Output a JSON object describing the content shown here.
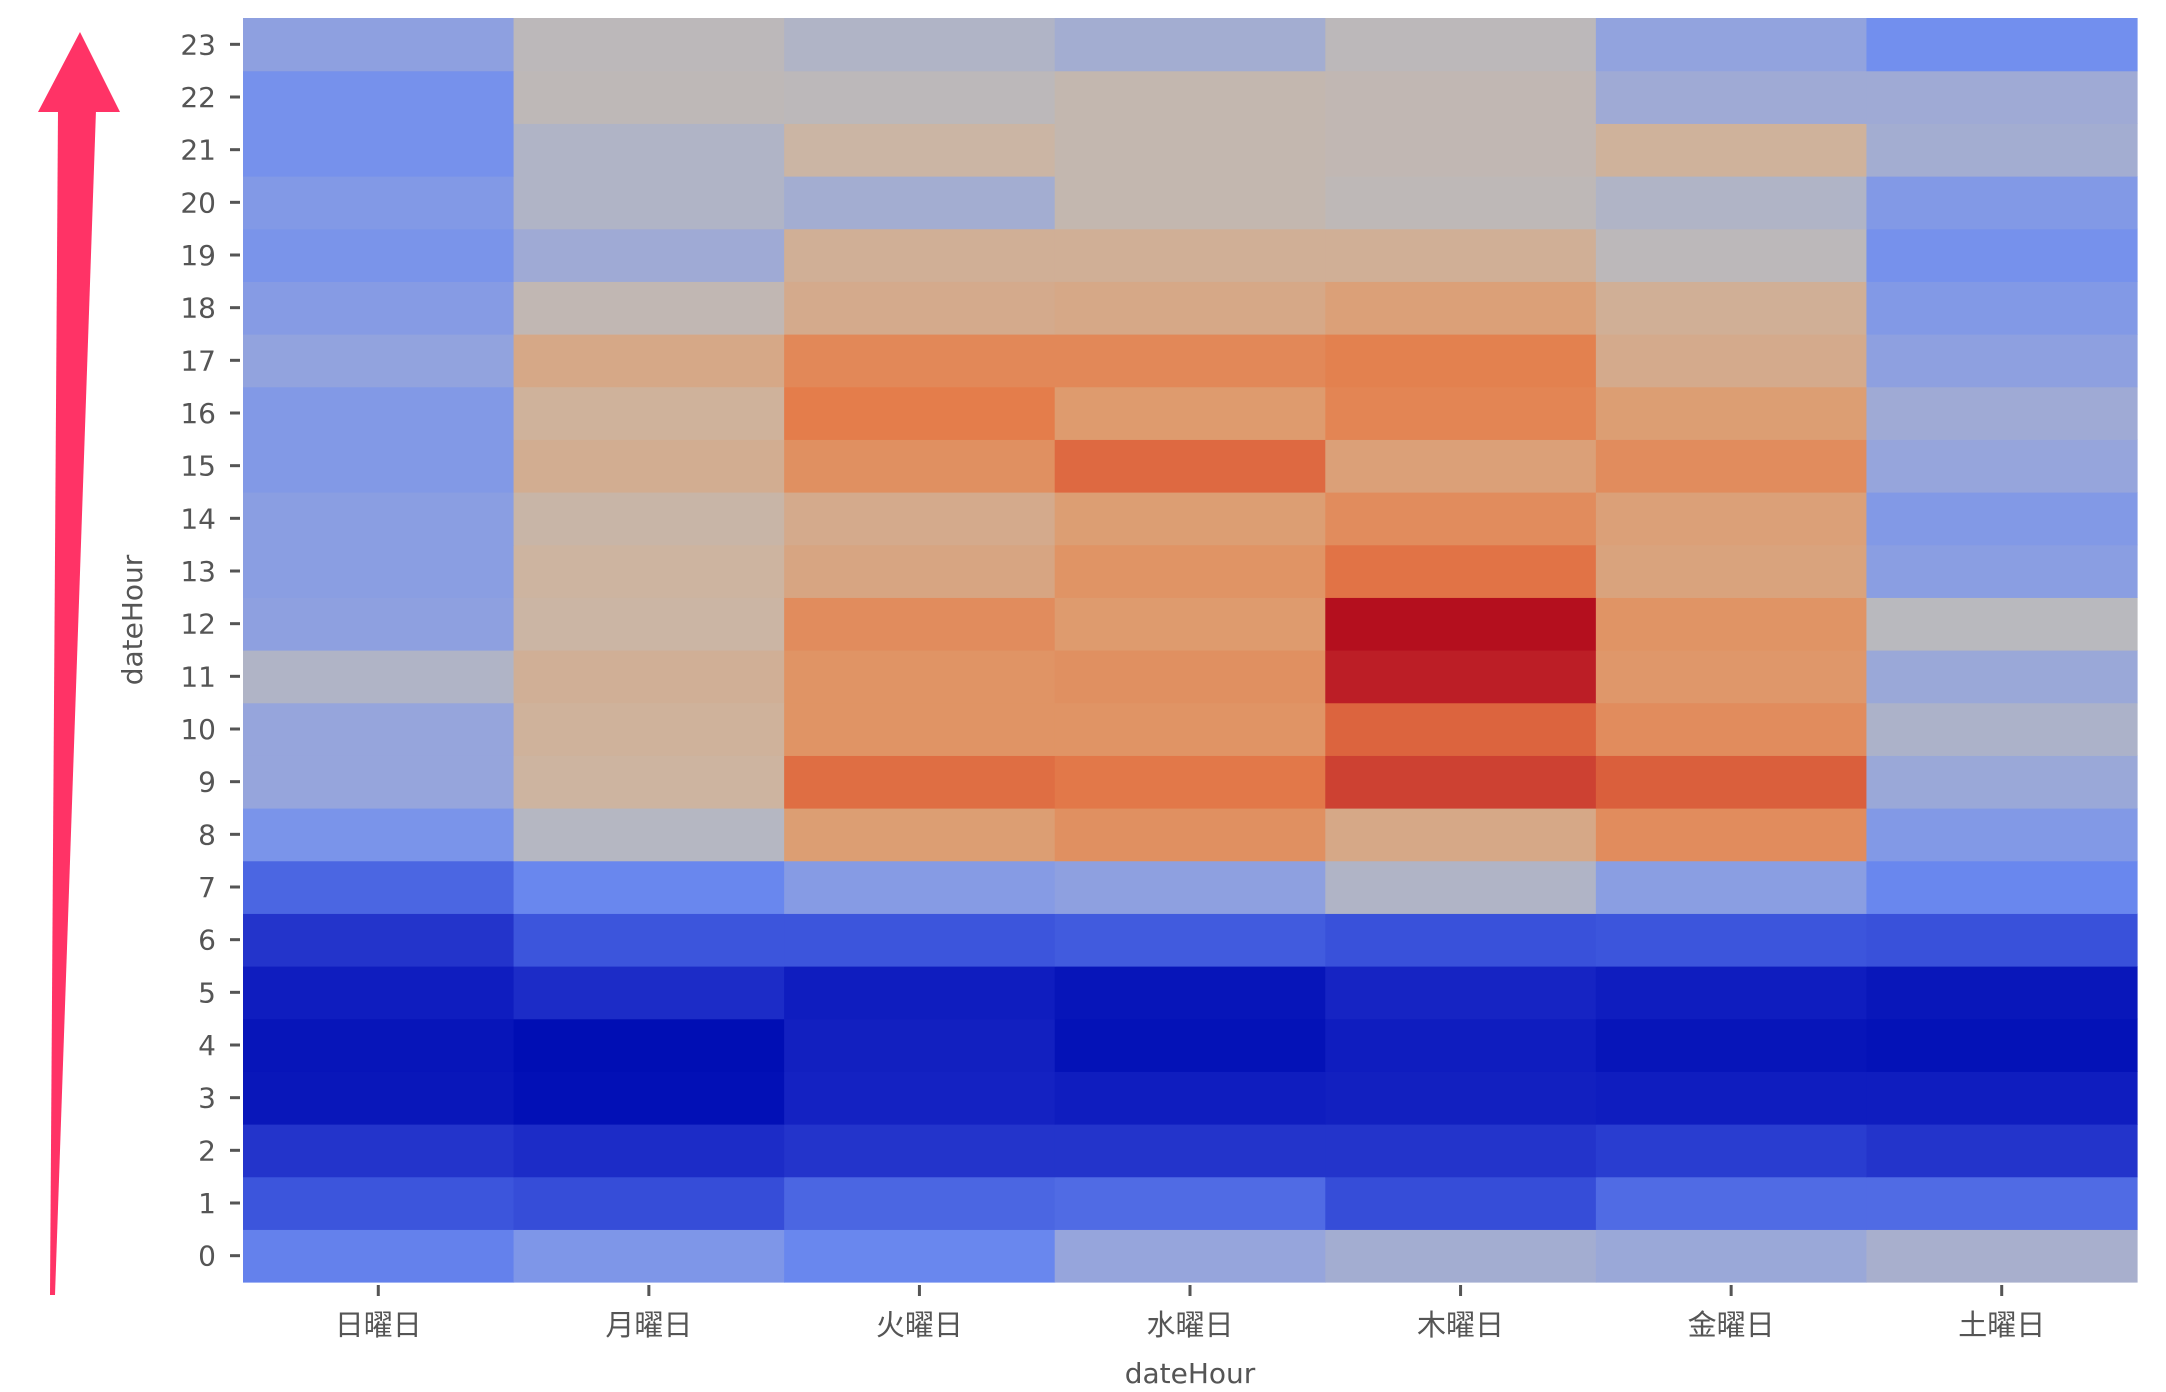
{
  "chart_data": {
    "type": "heatmap",
    "title": "",
    "xlabel": "dateHour",
    "ylabel": "dateHour",
    "x_categories": [
      "日曜日",
      "月曜日",
      "火曜日",
      "水曜日",
      "木曜日",
      "金曜日",
      "土曜日"
    ],
    "y_categories": [
      "0",
      "1",
      "2",
      "3",
      "4",
      "5",
      "6",
      "7",
      "8",
      "9",
      "10",
      "11",
      "12",
      "13",
      "14",
      "15",
      "16",
      "17",
      "18",
      "19",
      "20",
      "21",
      "22",
      "23"
    ],
    "colormap": "coolwarm",
    "values": [
      [
        0.3,
        0.36,
        0.31,
        0.42,
        0.45,
        0.43,
        0.46
      ],
      [
        0.22,
        0.2,
        0.25,
        0.26,
        0.2,
        0.26,
        0.26
      ],
      [
        0.14,
        0.12,
        0.14,
        0.14,
        0.14,
        0.16,
        0.14
      ],
      [
        0.04,
        0.01,
        0.09,
        0.07,
        0.08,
        0.07,
        0.07
      ],
      [
        0.03,
        0.0,
        0.08,
        0.02,
        0.07,
        0.03,
        0.02
      ],
      [
        0.07,
        0.12,
        0.07,
        0.03,
        0.1,
        0.07,
        0.04
      ],
      [
        0.14,
        0.22,
        0.22,
        0.23,
        0.21,
        0.22,
        0.21
      ],
      [
        0.25,
        0.31,
        0.38,
        0.4,
        0.48,
        0.39,
        0.31
      ],
      [
        0.35,
        0.49,
        0.67,
        0.71,
        0.63,
        0.72,
        0.37
      ],
      [
        0.42,
        0.58,
        0.79,
        0.77,
        0.88,
        0.82,
        0.43
      ],
      [
        0.42,
        0.59,
        0.7,
        0.7,
        0.81,
        0.72,
        0.47
      ],
      [
        0.48,
        0.6,
        0.7,
        0.71,
        0.95,
        0.69,
        0.43
      ],
      [
        0.4,
        0.57,
        0.72,
        0.68,
        0.98,
        0.7,
        0.5
      ],
      [
        0.39,
        0.58,
        0.64,
        0.7,
        0.78,
        0.65,
        0.39
      ],
      [
        0.39,
        0.56,
        0.62,
        0.67,
        0.72,
        0.66,
        0.37
      ],
      [
        0.37,
        0.61,
        0.71,
        0.8,
        0.66,
        0.72,
        0.42
      ],
      [
        0.37,
        0.59,
        0.76,
        0.68,
        0.74,
        0.67,
        0.44
      ],
      [
        0.41,
        0.63,
        0.73,
        0.73,
        0.75,
        0.62,
        0.4
      ],
      [
        0.38,
        0.53,
        0.62,
        0.63,
        0.66,
        0.6,
        0.37
      ],
      [
        0.35,
        0.44,
        0.6,
        0.6,
        0.6,
        0.51,
        0.34
      ],
      [
        0.37,
        0.48,
        0.45,
        0.54,
        0.52,
        0.48,
        0.37
      ],
      [
        0.34,
        0.48,
        0.57,
        0.54,
        0.53,
        0.59,
        0.45
      ],
      [
        0.34,
        0.52,
        0.51,
        0.54,
        0.53,
        0.44,
        0.44
      ],
      [
        0.4,
        0.51,
        0.48,
        0.45,
        0.51,
        0.41,
        0.33
      ]
    ],
    "annotations": [
      {
        "type": "arrow",
        "direction": "up",
        "color": "#ff3366"
      }
    ],
    "grid": false,
    "legend": "none"
  }
}
